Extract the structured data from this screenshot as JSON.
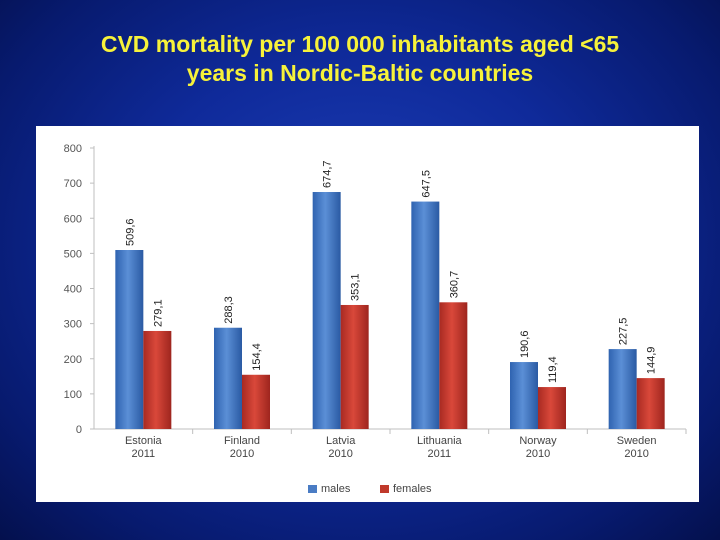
{
  "title": {
    "line1": "CVD mortality per 100 000 inhabitants aged <65",
    "line2": "years in Nordic-Baltic countries"
  },
  "colors": {
    "title": "#f7f23a",
    "males": "#4a7cc4",
    "females": "#c0392b"
  },
  "chart_data": {
    "type": "bar",
    "title": "CVD mortality per 100 000 inhabitants aged <65 years in Nordic-Baltic countries",
    "xlabel": "",
    "ylabel": "",
    "ylim": [
      0,
      800
    ],
    "yticks": [
      "0",
      "100",
      "200",
      "300",
      "400",
      "500",
      "600",
      "700",
      "800"
    ],
    "categories": [
      {
        "country": "Estonia",
        "year": "2011"
      },
      {
        "country": "Finland",
        "year": "2010"
      },
      {
        "country": "Latvia",
        "year": "2010"
      },
      {
        "country": "Lithuania",
        "year": "2011"
      },
      {
        "country": "Norway",
        "year": "2010"
      },
      {
        "country": "Sweden",
        "year": "2010"
      }
    ],
    "series": [
      {
        "name": "males",
        "values": [
          509.6,
          288.3,
          674.7,
          647.5,
          190.6,
          227.5
        ],
        "labels": [
          "509,6",
          "288,3",
          "674,7",
          "647,5",
          "190,6",
          "227,5"
        ]
      },
      {
        "name": "females",
        "values": [
          279.1,
          154.4,
          353.1,
          360.7,
          119.4,
          144.9
        ],
        "labels": [
          "279,1",
          "154,4",
          "353,1",
          "360,7",
          "119,4",
          "144,9"
        ]
      }
    ],
    "legend": "bottom"
  }
}
